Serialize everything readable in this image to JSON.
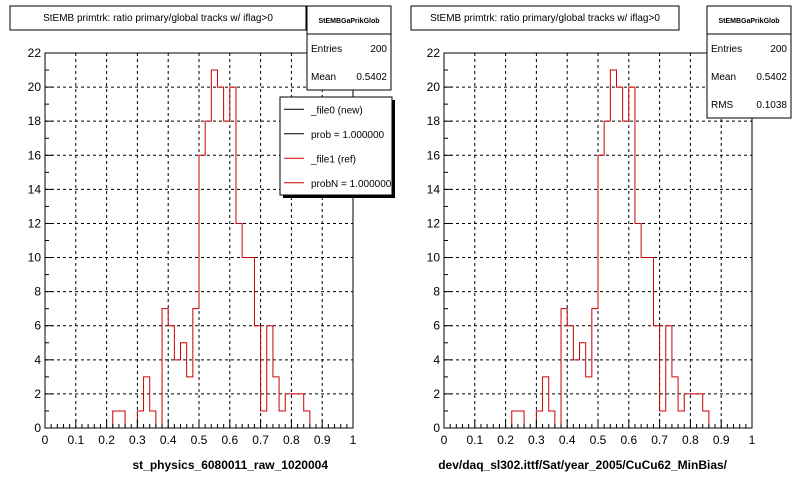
{
  "chart_data": [
    {
      "type": "bar",
      "title": "StEMB primtrk: ratio primary/global tracks w/ iflag>0",
      "xlabel": "st_physics_6080011_raw_1020004",
      "xlim": [
        0,
        1
      ],
      "ylim": [
        0,
        22
      ],
      "xticks": [
        "0",
        "0.1",
        "0.2",
        "0.3",
        "0.4",
        "0.5",
        "0.6",
        "0.7",
        "0.8",
        "0.9",
        "1"
      ],
      "yticks": [
        "0",
        "2",
        "4",
        "6",
        "8",
        "10",
        "12",
        "14",
        "16",
        "18",
        "20",
        "22"
      ],
      "grid": true,
      "bin_width": 0.02,
      "series": [
        {
          "name": "",
          "color": "#cc0000",
          "values": [
            0,
            0,
            0,
            0,
            0,
            0,
            0,
            0,
            0,
            0,
            0,
            1,
            1,
            0,
            0,
            1,
            3,
            1,
            0,
            7,
            6,
            4,
            5,
            3,
            7,
            16,
            18,
            21,
            20,
            18,
            20,
            12,
            10,
            10,
            6,
            1,
            6,
            3,
            1,
            2,
            2,
            2,
            1,
            0,
            0,
            0,
            0,
            0,
            0,
            0
          ]
        }
      ],
      "stats": {
        "name": "StEMBGaPrikGlob",
        "entries_label": "Entries",
        "entries": "200",
        "mean_label": "Mean",
        "mean": "0.5402"
      },
      "legend": {
        "position": "top-right",
        "entries": [
          {
            "label": "_file0 (new)",
            "color": "#000000"
          },
          {
            "label": "prob = 1.000000",
            "color": "#000000"
          },
          {
            "label": "_file1 (ref)",
            "color": "#cc0000"
          },
          {
            "label": "probN = 1.000000",
            "color": "#cc0000"
          }
        ]
      }
    },
    {
      "type": "bar",
      "title": "StEMB primtrk: ratio primary/global tracks w/ iflag>0",
      "xlabel": "dev/daq_sl302.ittf/Sat/year_2005/CuCu62_MinBias/",
      "xlim": [
        0,
        1
      ],
      "ylim": [
        0,
        22
      ],
      "xticks": [
        "0",
        "0.1",
        "0.2",
        "0.3",
        "0.4",
        "0.5",
        "0.6",
        "0.7",
        "0.8",
        "0.9",
        "1"
      ],
      "yticks": [
        "0",
        "2",
        "4",
        "6",
        "8",
        "10",
        "12",
        "14",
        "16",
        "18",
        "20",
        "22"
      ],
      "grid": true,
      "bin_width": 0.02,
      "series": [
        {
          "name": "",
          "color": "#cc0000",
          "values": [
            0,
            0,
            0,
            0,
            0,
            0,
            0,
            0,
            0,
            0,
            0,
            1,
            1,
            0,
            0,
            1,
            3,
            1,
            0,
            7,
            6,
            4,
            5,
            3,
            7,
            16,
            18,
            21,
            20,
            18,
            20,
            12,
            10,
            10,
            6,
            1,
            6,
            3,
            1,
            2,
            2,
            2,
            1,
            0,
            0,
            0,
            0,
            0,
            0,
            0
          ]
        }
      ],
      "stats": {
        "name": "StEMBGaPrikGlob",
        "entries_label": "Entries",
        "entries": "200",
        "mean_label": "Mean",
        "mean": "0.5402",
        "rms_label": "RMS",
        "rms": "0.1038"
      }
    }
  ]
}
